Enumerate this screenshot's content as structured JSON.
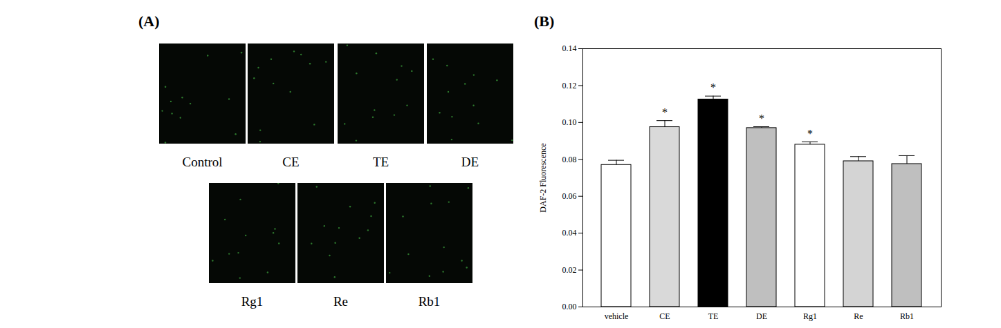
{
  "figure": {
    "panel_labels": [
      "(A)",
      "(B)"
    ],
    "images": [
      "Control",
      "CE",
      "TE",
      "DE",
      "Rg1",
      "Re",
      "Rb1"
    ]
  },
  "chart_data": {
    "type": "bar",
    "y_label": "DAF-2 Fluorescence",
    "categories": [
      "vehicle",
      "CE",
      "TE",
      "DE",
      "Rg1",
      "Re",
      "Rb1"
    ],
    "values": [
      0.077,
      0.0975,
      0.1125,
      0.097,
      0.088,
      0.079,
      0.0775
    ],
    "errors": [
      0.0025,
      0.0035,
      0.0018,
      0.0007,
      0.0015,
      0.0025,
      0.0045
    ],
    "colors": [
      "#ffffff",
      "#d9d9d9",
      "#000000",
      "#bfbfbf",
      "#ffffff",
      "#d4d4d4",
      "#bfbfbf"
    ],
    "annotations": [
      {
        "category": "CE",
        "text": "*"
      },
      {
        "category": "TE",
        "text": "*"
      },
      {
        "category": "DE",
        "text": "*"
      },
      {
        "category": "Rg1",
        "text": "*"
      }
    ],
    "ylim": [
      0,
      0.14
    ],
    "yticks": [
      {
        "value": 0,
        "label": "0.00"
      },
      0.02,
      0.04,
      0.06,
      0.08,
      {
        "value": 0.1,
        "label": "0.10"
      },
      0.12,
      0.14
    ],
    "grid": false
  }
}
